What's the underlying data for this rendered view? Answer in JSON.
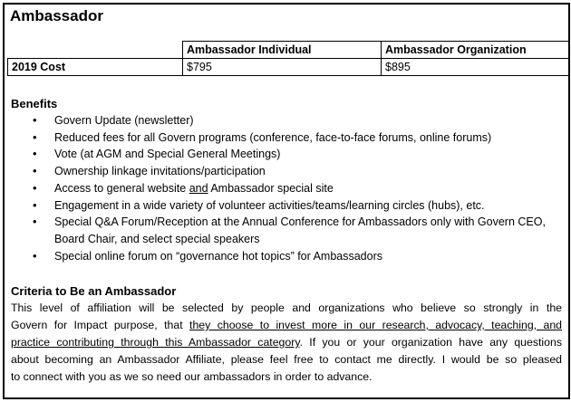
{
  "title": "Ambassador",
  "table": {
    "headers": [
      "",
      "Ambassador Individual",
      "Ambassador Organization"
    ],
    "rows": [
      [
        "2019 Cost",
        "$795",
        "$895"
      ]
    ]
  },
  "benefits": {
    "heading": "Benefits",
    "items": [
      "Govern Update (newsletter)",
      "Reduced fees for all Govern programs (conference, face-to-face forums, online forums)",
      "Vote (at AGM and Special General Meetings)",
      "Ownership linkage invitations/participation",
      {
        "pre": "Access to general website ",
        "u": "and",
        "post": " Ambassador special site"
      },
      "Engagement in a wide variety of volunteer activities/teams/learning circles (hubs), etc.",
      "Special Q&A Forum/Reception at the Annual Conference for Ambassadors only with Govern CEO, Board Chair, and select special speakers",
      "Special online forum on “governance hot topics” for Ambassadors"
    ]
  },
  "criteria": {
    "heading": "Criteria to Be an Ambassador",
    "lines": [
      {
        "a": "This level of affiliation will be selected by people and organizations who believe so strongly in the"
      },
      {
        "a": "Govern for Impact purpose, that ",
        "u": "they choose to invest more in our research, advocacy, teaching, and"
      },
      {
        "u": "practice contributing through this Ambassador category",
        "a": ".  If you or your organization have any questions"
      },
      {
        "a": "about becoming an Ambassador Affiliate, please feel free to contact me directly.  I would be so pleased"
      },
      {
        "a": "to connect with you as we so need our ambassadors in order to advance."
      }
    ]
  }
}
